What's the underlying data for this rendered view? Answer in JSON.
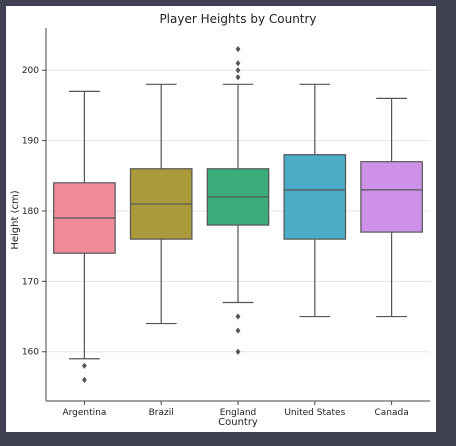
{
  "chart_data": {
    "type": "box",
    "title": "Player Heights by Country",
    "xlabel": "Country",
    "ylabel": "Height (cm)",
    "ylim": [
      153,
      206
    ],
    "yticks": [
      160,
      170,
      180,
      190,
      200
    ],
    "grid": "horizontal",
    "categories": [
      "Argentina",
      "Brazil",
      "England",
      "United States",
      "Canada"
    ],
    "boxes": [
      {
        "category": "Argentina",
        "whisker_low": 159,
        "q1": 174,
        "median": 179,
        "q3": 184,
        "whisker_high": 197,
        "outliers": [
          158,
          156
        ],
        "color": "#f08b9a"
      },
      {
        "category": "Brazil",
        "whisker_low": 164,
        "q1": 176,
        "median": 181,
        "q3": 186,
        "whisker_high": 198,
        "outliers": [],
        "color": "#ab9a3c"
      },
      {
        "category": "England",
        "whisker_low": 167,
        "q1": 178,
        "median": 182,
        "q3": 186,
        "whisker_high": 198,
        "outliers": [
          203,
          201,
          200,
          199,
          165,
          163,
          160
        ],
        "color": "#3bab7a"
      },
      {
        "category": "United States",
        "whisker_low": 165,
        "q1": 176,
        "median": 183,
        "q3": 188,
        "whisker_high": 198,
        "outliers": [],
        "color": "#4aacc6"
      },
      {
        "category": "Canada",
        "whisker_low": 165,
        "q1": 177,
        "median": 183,
        "q3": 187,
        "whisker_high": 196,
        "outliers": [],
        "color": "#cd91e8"
      }
    ]
  }
}
